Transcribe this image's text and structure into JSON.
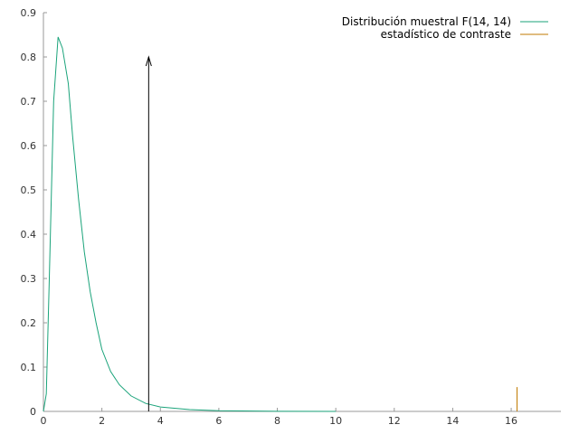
{
  "chart_data": {
    "type": "line",
    "title": "",
    "xlabel": "",
    "ylabel": "",
    "xlim": [
      0,
      17.7
    ],
    "ylim": [
      0,
      0.9
    ],
    "x_ticks": [
      0,
      2,
      4,
      6,
      8,
      10,
      12,
      14,
      16
    ],
    "y_ticks": [
      0,
      0.1,
      0.2,
      0.3,
      0.4,
      0.5,
      0.6,
      0.7,
      0.8,
      0.9
    ],
    "grid": false,
    "legend_position": "top-right",
    "series": [
      {
        "name": "Distribución muestral F(14, 14)",
        "color": "#1aa37a",
        "x": [
          0,
          0.1,
          0.2,
          0.35,
          0.5,
          0.65,
          0.85,
          1.0,
          1.2,
          1.4,
          1.6,
          1.8,
          2.0,
          2.3,
          2.6,
          3.0,
          3.5,
          4.0,
          5.0,
          6.0,
          8.0,
          10.0
        ],
        "y": [
          0,
          0.04,
          0.3,
          0.7,
          0.845,
          0.82,
          0.74,
          0.62,
          0.48,
          0.36,
          0.27,
          0.2,
          0.14,
          0.09,
          0.06,
          0.035,
          0.018,
          0.01,
          0.004,
          0.0015,
          0.0003,
          0.0001
        ]
      },
      {
        "name": "estadístico de contraste",
        "color": "#c07a00",
        "x": [
          16.2,
          16.2
        ],
        "y": [
          0,
          0.055
        ]
      }
    ],
    "annotations": [
      {
        "type": "arrow",
        "x": 3.6,
        "y_from": 0,
        "y_to": 0.8,
        "color": "#000000"
      }
    ]
  }
}
